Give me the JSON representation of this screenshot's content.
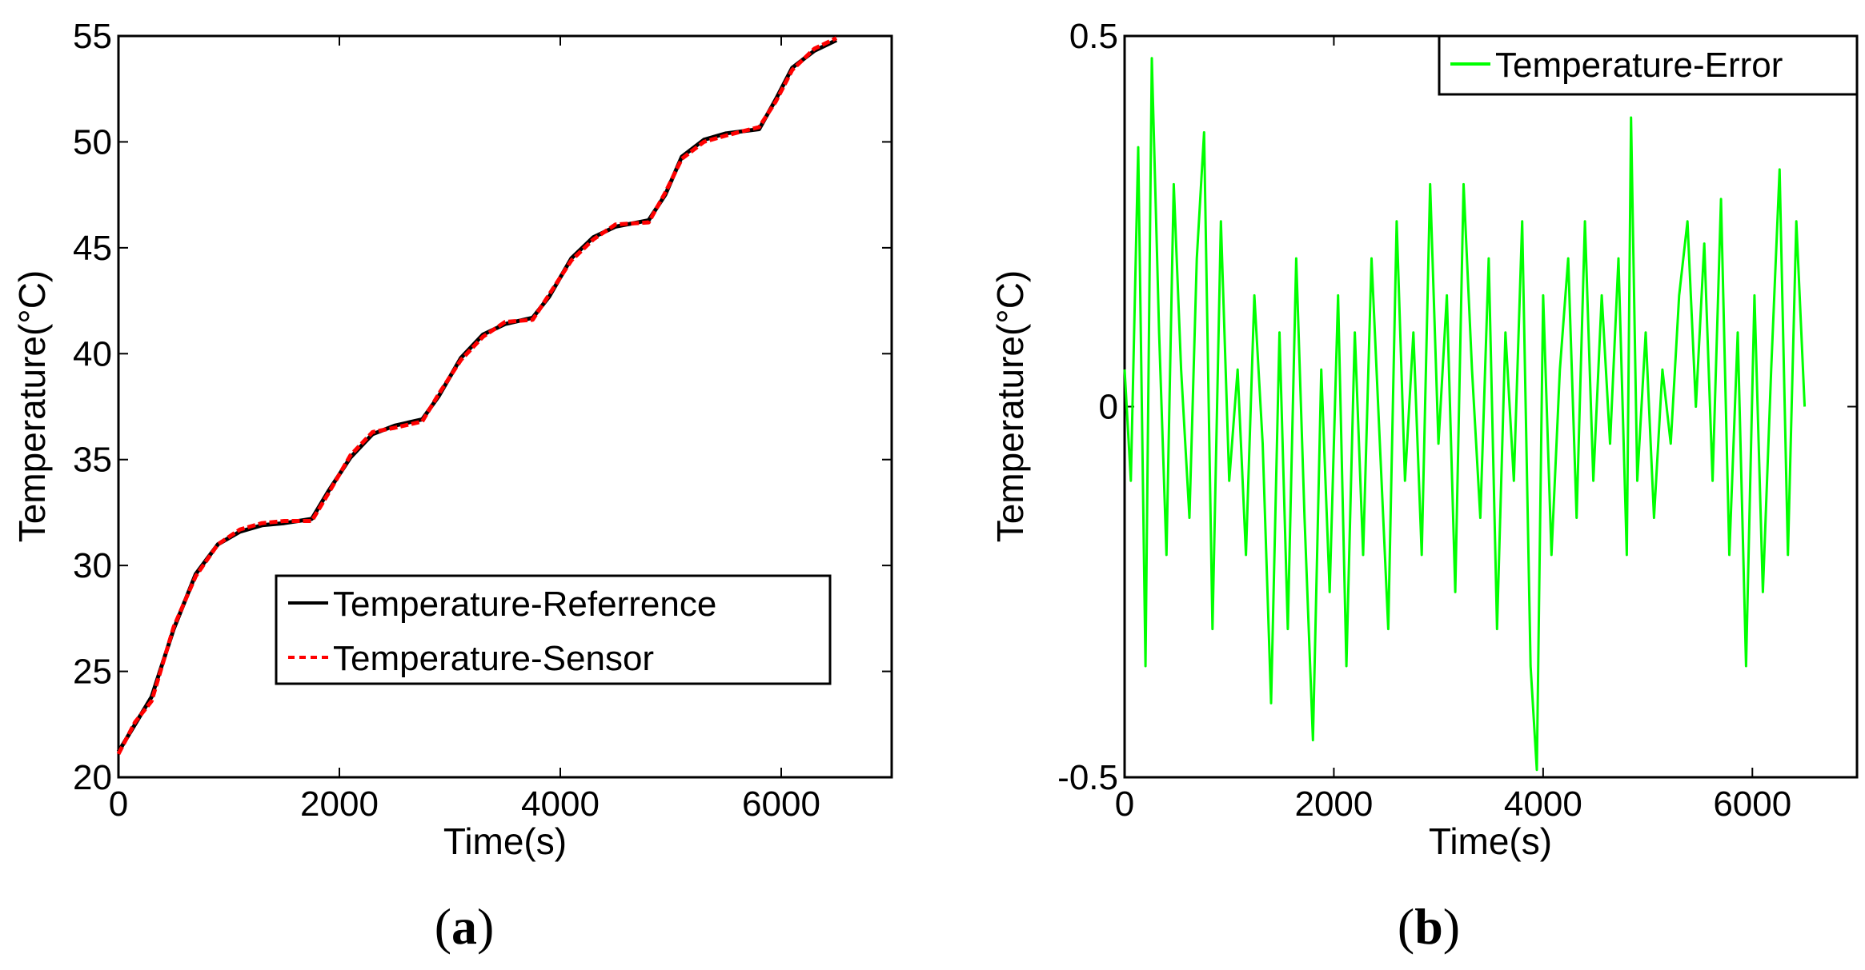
{
  "chart_data": [
    {
      "type": "line",
      "panel": "a",
      "caption": {
        "open": "(",
        "letter": "a",
        "close": ")"
      },
      "xlabel": "Time(s)",
      "ylabel": "Temperature(°C)",
      "xlim": [
        0,
        7000
      ],
      "ylim": [
        20,
        55
      ],
      "xticks": [
        0,
        2000,
        4000,
        6000
      ],
      "xtick_labels": [
        "0",
        "2000",
        "4000",
        "6000"
      ],
      "yticks": [
        20,
        25,
        30,
        35,
        40,
        45,
        50,
        55
      ],
      "ytick_labels": [
        "20",
        "25",
        "30",
        "35",
        "40",
        "45",
        "50",
        "55"
      ],
      "legend_position": "bottom-right",
      "series": [
        {
          "name": "Temperature-Referrence",
          "color": "#000000",
          "style": "solid",
          "x": [
            0,
            150,
            300,
            500,
            700,
            900,
            1100,
            1300,
            1500,
            1750,
            1900,
            2100,
            2300,
            2500,
            2750,
            2900,
            3100,
            3300,
            3500,
            3750,
            3900,
            4100,
            4300,
            4500,
            4800,
            4950,
            5100,
            5300,
            5500,
            5800,
            5950,
            6100,
            6300,
            6500
          ],
          "y": [
            21.2,
            22.5,
            23.8,
            27.0,
            29.6,
            31.0,
            31.6,
            31.9,
            32.0,
            32.2,
            33.5,
            35.1,
            36.2,
            36.6,
            36.9,
            38.0,
            39.8,
            40.9,
            41.4,
            41.7,
            42.7,
            44.5,
            45.5,
            46.0,
            46.3,
            47.5,
            49.3,
            50.1,
            50.4,
            50.6,
            52.0,
            53.5,
            54.3,
            54.8
          ]
        },
        {
          "name": "Temperature-Sensor",
          "color": "#ff0000",
          "style": "dashed",
          "x": [
            0,
            150,
            300,
            500,
            700,
            900,
            1100,
            1300,
            1500,
            1750,
            1900,
            2100,
            2300,
            2500,
            2750,
            2900,
            3100,
            3300,
            3500,
            3750,
            3900,
            4100,
            4300,
            4500,
            4800,
            4950,
            5100,
            5300,
            5500,
            5800,
            5950,
            6100,
            6300,
            6500
          ],
          "y": [
            21.1,
            22.6,
            23.6,
            27.1,
            29.5,
            31.0,
            31.7,
            32.0,
            32.1,
            32.1,
            33.4,
            35.2,
            36.3,
            36.5,
            36.8,
            38.1,
            39.7,
            40.8,
            41.5,
            41.6,
            42.8,
            44.4,
            45.4,
            46.1,
            46.2,
            47.6,
            49.2,
            50.0,
            50.3,
            50.7,
            51.9,
            53.4,
            54.4,
            54.9
          ]
        }
      ]
    },
    {
      "type": "line",
      "panel": "b",
      "caption": {
        "open": "(",
        "letter": "b",
        "close": ")"
      },
      "xlabel": "Time(s)",
      "ylabel": "Temperature(°C)",
      "xlim": [
        0,
        7000
      ],
      "ylim": [
        -0.5,
        0.5
      ],
      "xticks": [
        0,
        2000,
        4000,
        6000
      ],
      "xtick_labels": [
        "0",
        "2000",
        "4000",
        "6000"
      ],
      "yticks": [
        -0.5,
        0,
        0.5
      ],
      "ytick_labels": [
        "-0.5",
        "0",
        "0.5"
      ],
      "legend_position": "top-right",
      "series": [
        {
          "name": "Temperature-Error",
          "color": "#00ff00",
          "style": "solid",
          "x": [
            0,
            60,
            130,
            200,
            260,
            330,
            400,
            470,
            540,
            620,
            690,
            760,
            840,
            920,
            1000,
            1080,
            1160,
            1240,
            1320,
            1400,
            1480,
            1560,
            1640,
            1720,
            1800,
            1880,
            1960,
            2040,
            2120,
            2200,
            2280,
            2360,
            2440,
            2520,
            2600,
            2680,
            2760,
            2840,
            2920,
            3000,
            3080,
            3160,
            3240,
            3320,
            3400,
            3480,
            3560,
            3640,
            3720,
            3800,
            3880,
            3940,
            4000,
            4080,
            4160,
            4240,
            4320,
            4400,
            4480,
            4560,
            4640,
            4720,
            4800,
            4840,
            4900,
            4980,
            5060,
            5140,
            5220,
            5300,
            5380,
            5460,
            5540,
            5620,
            5700,
            5780,
            5860,
            5940,
            6020,
            6100,
            6180,
            6260,
            6340,
            6420,
            6500
          ],
          "y": [
            0.05,
            -0.1,
            0.35,
            -0.35,
            0.47,
            0.1,
            -0.2,
            0.3,
            0.05,
            -0.15,
            0.2,
            0.37,
            -0.3,
            0.25,
            -0.1,
            0.05,
            -0.2,
            0.15,
            -0.05,
            -0.4,
            0.1,
            -0.3,
            0.2,
            -0.15,
            -0.45,
            0.05,
            -0.25,
            0.15,
            -0.35,
            0.1,
            -0.2,
            0.2,
            -0.05,
            -0.3,
            0.25,
            -0.1,
            0.1,
            -0.2,
            0.3,
            -0.05,
            0.15,
            -0.25,
            0.3,
            0.05,
            -0.15,
            0.2,
            -0.3,
            0.1,
            -0.1,
            0.25,
            -0.35,
            -0.49,
            0.15,
            -0.2,
            0.05,
            0.2,
            -0.15,
            0.25,
            -0.1,
            0.15,
            -0.05,
            0.2,
            -0.2,
            0.39,
            -0.1,
            0.1,
            -0.15,
            0.05,
            -0.05,
            0.15,
            0.25,
            0.0,
            0.22,
            -0.1,
            0.28,
            -0.2,
            0.1,
            -0.35,
            0.15,
            -0.25,
            0.05,
            0.32,
            -0.2,
            0.25,
            0.0
          ]
        }
      ]
    }
  ]
}
